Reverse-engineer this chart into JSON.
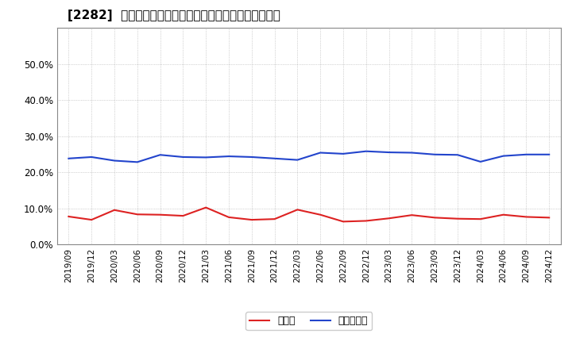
{
  "title": "[2282]  現頲金、有利子負債の総資産に対する比率の推移",
  "x_labels": [
    "2019/09",
    "2019/12",
    "2020/03",
    "2020/06",
    "2020/09",
    "2020/12",
    "2021/03",
    "2021/06",
    "2021/09",
    "2021/12",
    "2022/03",
    "2022/06",
    "2022/09",
    "2022/12",
    "2023/03",
    "2023/06",
    "2023/09",
    "2023/12",
    "2024/03",
    "2024/06",
    "2024/09",
    "2024/12"
  ],
  "cash_values": [
    0.077,
    0.068,
    0.095,
    0.083,
    0.082,
    0.079,
    0.102,
    0.075,
    0.068,
    0.07,
    0.096,
    0.082,
    0.063,
    0.065,
    0.072,
    0.081,
    0.074,
    0.071,
    0.07,
    0.082,
    0.076,
    0.074
  ],
  "debt_values": [
    0.238,
    0.242,
    0.232,
    0.228,
    0.248,
    0.242,
    0.241,
    0.244,
    0.242,
    0.238,
    0.234,
    0.254,
    0.251,
    0.258,
    0.255,
    0.254,
    0.249,
    0.248,
    0.229,
    0.245,
    0.249,
    0.249
  ],
  "cash_color": "#dd2222",
  "debt_color": "#2244cc",
  "cash_label": "現頲金",
  "debt_label": "有利子負債",
  "ylim": [
    0.0,
    0.6
  ],
  "yticks": [
    0.0,
    0.1,
    0.2,
    0.3,
    0.4,
    0.5
  ],
  "background_color": "#ffffff",
  "grid_color": "#999999",
  "title_fontsize": 11,
  "legend_fontsize": 9,
  "tick_fontsize": 7.5,
  "line_width": 1.5
}
